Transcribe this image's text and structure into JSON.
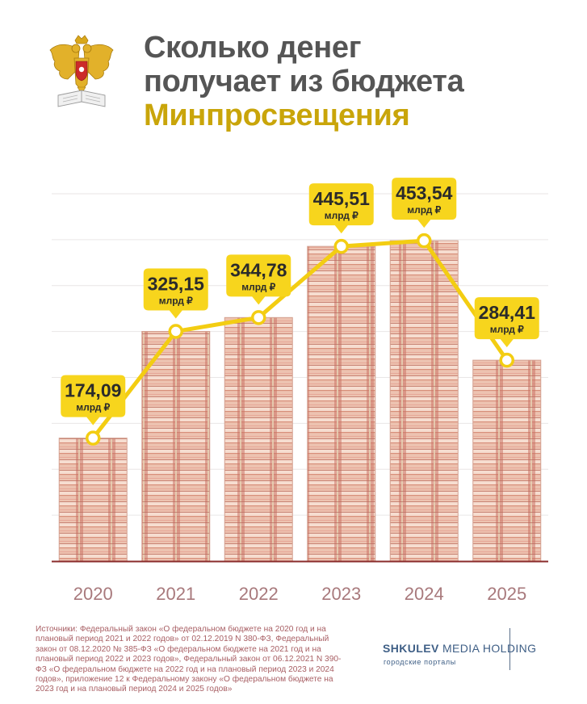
{
  "title": {
    "line1": "Сколько денег",
    "line2": "получает из бюджета",
    "line3": "Минпросвещения"
  },
  "colors": {
    "title": "#555555",
    "accent": "#c9a50a",
    "label_fill": "#f7d51d",
    "line": "#f3cd12",
    "baseline": "#8a2b2b",
    "year_label": "#a8797c",
    "sources": "#a85f64",
    "brand": "#3f5f86"
  },
  "emblem": {
    "icon": "russian-coat-of-arms-icon"
  },
  "chart_data": {
    "type": "bar",
    "bar_style": "stacks of banknotes",
    "overlay": "line",
    "categories": [
      "2020",
      "2021",
      "2022",
      "2023",
      "2024",
      "2025"
    ],
    "values": [
      174.09,
      325.15,
      344.78,
      445.51,
      453.54,
      284.41
    ],
    "value_labels": [
      "174,09",
      "325,15",
      "344,78",
      "445,51",
      "453,54",
      "284,41"
    ],
    "unit": "млрд ₽",
    "ylim": [
      0,
      520
    ],
    "grid": true
  },
  "sources": "Источники: Федеральный закон «О федеральном бюджете на 2020 год и на плановый период 2021 и 2022 годов» от 02.12.2019 N 380-ФЗ, Федеральный закон от 08.12.2020 № 385-ФЗ «О федеральном бюджете на 2021 год и на плановый период 2022 и 2023 годов», Федеральный закон от 06.12.2021 N 390-ФЗ «О федеральном бюджете на 2022 год и на плановый период 2023 и 2024 годов», приложение 12 к Федеральному закону «О федеральном бюджете на 2023 год и на плановый период 2024 и 2025 годов»",
  "brand": {
    "name_bold": "SHKULEV",
    "name_rest": " MEDIA HOLDING",
    "tagline": "городские порталы"
  }
}
